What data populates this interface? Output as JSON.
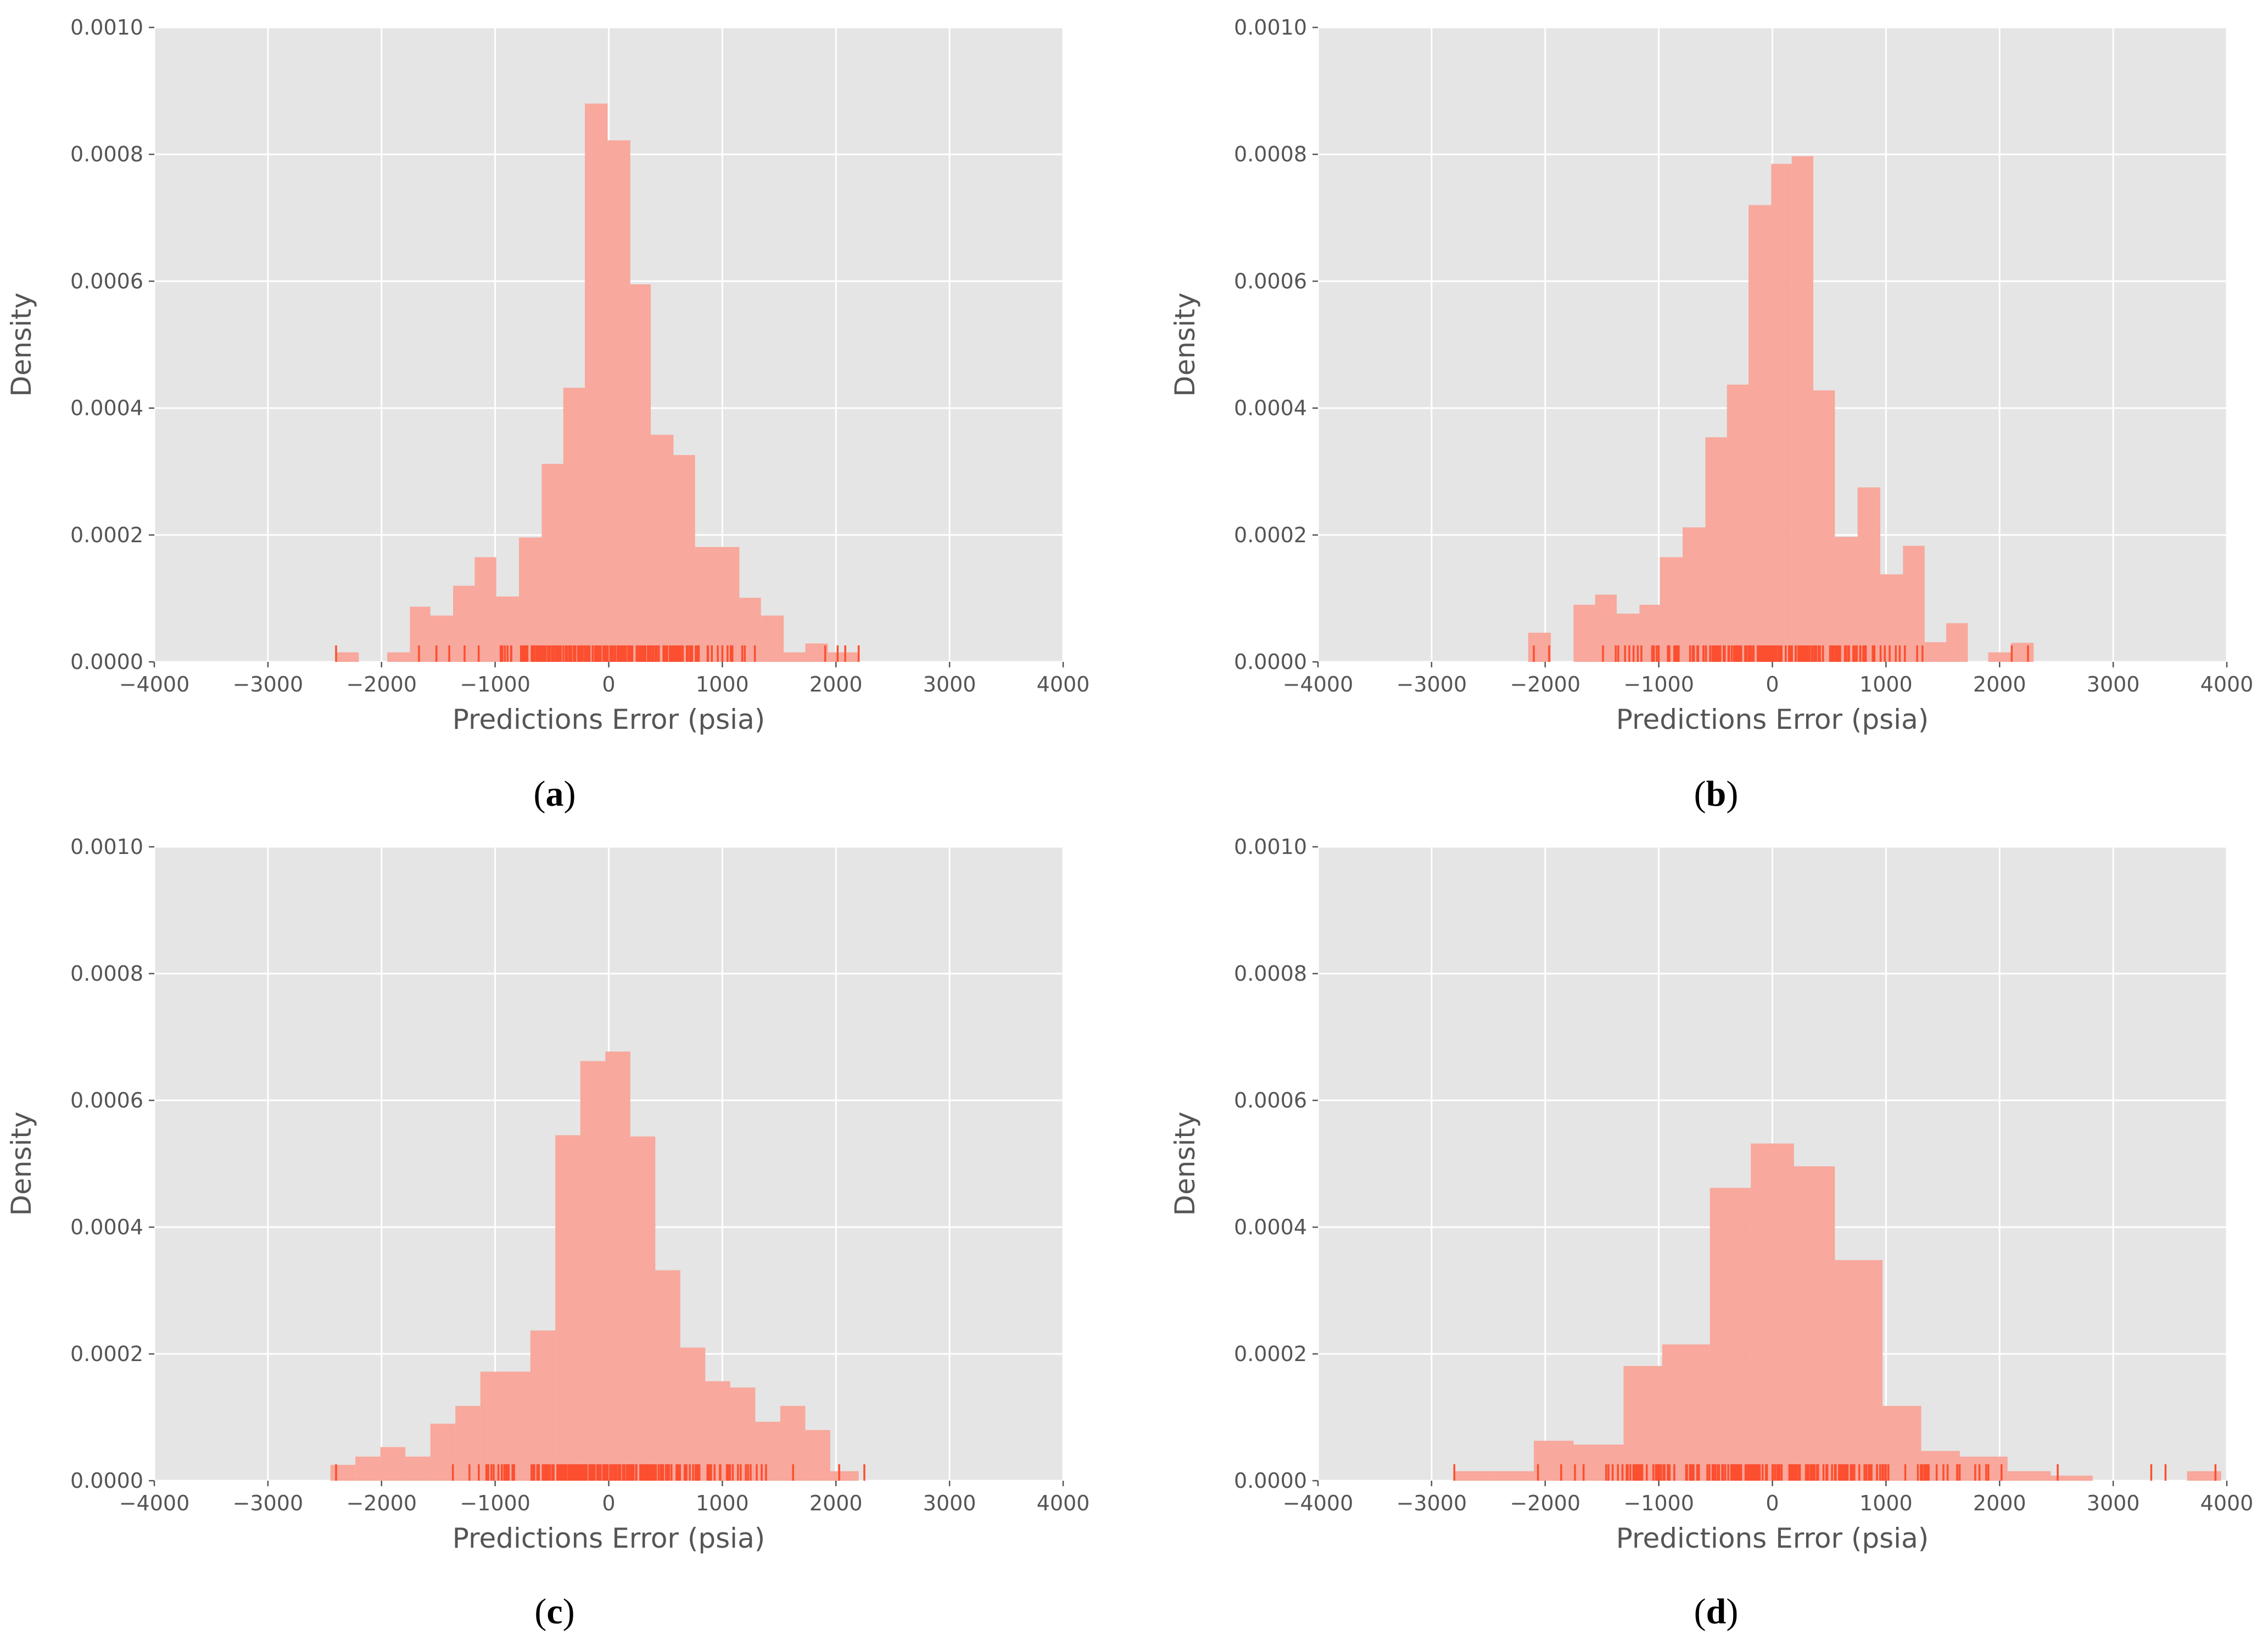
{
  "colors": {
    "plot_background": "#e5e5e5",
    "grid": "#ffffff",
    "bar_fill": "#f8a89c",
    "rug": "#fc4f30",
    "tick_text": "#555555"
  },
  "chart_data": [
    {
      "type": "bar",
      "panel_label": "a",
      "caption_open": "(",
      "caption_close": ")",
      "xlabel": "Predictions Error (psia)",
      "ylabel": "Density",
      "xlim": [
        -4000,
        4000
      ],
      "ylim": [
        0,
        0.001
      ],
      "grid": true,
      "xticks": [
        -4000,
        -3000,
        -2000,
        -1000,
        0,
        1000,
        2000,
        3000,
        4000
      ],
      "xtick_labels": [
        "−4000",
        "−3000",
        "−2000",
        "−1000",
        "0",
        "1000",
        "2000",
        "3000",
        "4000"
      ],
      "yticks": [
        0,
        0.0002,
        0.0004,
        0.0006,
        0.0008,
        0.001
      ],
      "ytick_labels": [
        "0.0000",
        "0.0002",
        "0.0004",
        "0.0006",
        "0.0008",
        "0.0010"
      ],
      "bins": [
        {
          "x0": -2400,
          "x1": -2200,
          "y": 1.5e-05
        },
        {
          "x0": -1950,
          "x1": -1750,
          "y": 1.5e-05
        },
        {
          "x0": -1750,
          "x1": -1570,
          "y": 8.7e-05
        },
        {
          "x0": -1570,
          "x1": -1370,
          "y": 7.3e-05
        },
        {
          "x0": -1370,
          "x1": -1180,
          "y": 0.00012
        },
        {
          "x0": -1180,
          "x1": -990,
          "y": 0.000165
        },
        {
          "x0": -990,
          "x1": -790,
          "y": 0.000103
        },
        {
          "x0": -790,
          "x1": -590,
          "y": 0.000196
        },
        {
          "x0": -590,
          "x1": -400,
          "y": 0.000312
        },
        {
          "x0": -400,
          "x1": -210,
          "y": 0.000432
        },
        {
          "x0": -210,
          "x1": -10,
          "y": 0.00088
        },
        {
          "x0": -10,
          "x1": 190,
          "y": 0.000822
        },
        {
          "x0": 190,
          "x1": 370,
          "y": 0.000595
        },
        {
          "x0": 370,
          "x1": 570,
          "y": 0.000358
        },
        {
          "x0": 570,
          "x1": 760,
          "y": 0.000326
        },
        {
          "x0": 760,
          "x1": 1150,
          "y": 0.000181
        },
        {
          "x0": 1150,
          "x1": 1340,
          "y": 0.000101
        },
        {
          "x0": 1340,
          "x1": 1540,
          "y": 7.3e-05
        },
        {
          "x0": 1540,
          "x1": 1730,
          "y": 1.5e-05
        },
        {
          "x0": 1730,
          "x1": 1930,
          "y": 2.9e-05
        },
        {
          "x0": 1930,
          "x1": 2200,
          "y": 1.5e-05
        }
      ],
      "rug_range": [
        -2400,
        2200
      ]
    },
    {
      "type": "bar",
      "panel_label": "b",
      "caption_open": "(",
      "caption_close": ")",
      "xlabel": "Predictions Error (psia)",
      "ylabel": "Density",
      "xlim": [
        -4000,
        4000
      ],
      "ylim": [
        0,
        0.001
      ],
      "grid": true,
      "xticks": [
        -4000,
        -3000,
        -2000,
        -1000,
        0,
        1000,
        2000,
        3000,
        4000
      ],
      "xtick_labels": [
        "−4000",
        "−3000",
        "−2000",
        "−1000",
        "0",
        "1000",
        "2000",
        "3000",
        "4000"
      ],
      "yticks": [
        0,
        0.0002,
        0.0004,
        0.0006,
        0.0008,
        0.001
      ],
      "ytick_labels": [
        "0.0000",
        "0.0002",
        "0.0004",
        "0.0006",
        "0.0008",
        "0.0010"
      ],
      "bins": [
        {
          "x0": -2150,
          "x1": -1950,
          "y": 4.6e-05
        },
        {
          "x0": -1750,
          "x1": -1560,
          "y": 9e-05
        },
        {
          "x0": -1560,
          "x1": -1370,
          "y": 0.000106
        },
        {
          "x0": -1370,
          "x1": -1170,
          "y": 7.6e-05
        },
        {
          "x0": -1170,
          "x1": -990,
          "y": 9e-05
        },
        {
          "x0": -990,
          "x1": -790,
          "y": 0.000165
        },
        {
          "x0": -790,
          "x1": -590,
          "y": 0.000212
        },
        {
          "x0": -590,
          "x1": -400,
          "y": 0.000354
        },
        {
          "x0": -400,
          "x1": -210,
          "y": 0.000437
        },
        {
          "x0": -210,
          "x1": -10,
          "y": 0.00072
        },
        {
          "x0": -10,
          "x1": 170,
          "y": 0.000785
        },
        {
          "x0": 170,
          "x1": 360,
          "y": 0.000797
        },
        {
          "x0": 360,
          "x1": 550,
          "y": 0.000428
        },
        {
          "x0": 550,
          "x1": 750,
          "y": 0.000197
        },
        {
          "x0": 750,
          "x1": 950,
          "y": 0.000275
        },
        {
          "x0": 950,
          "x1": 1150,
          "y": 0.000138
        },
        {
          "x0": 1150,
          "x1": 1340,
          "y": 0.000183
        },
        {
          "x0": 1340,
          "x1": 1530,
          "y": 3.1e-05
        },
        {
          "x0": 1530,
          "x1": 1720,
          "y": 6.1e-05
        },
        {
          "x0": 1900,
          "x1": 2100,
          "y": 1.5e-05
        },
        {
          "x0": 2100,
          "x1": 2300,
          "y": 3e-05
        }
      ],
      "rug_range": [
        -2100,
        2250
      ]
    },
    {
      "type": "bar",
      "panel_label": "c",
      "caption_open": "(",
      "caption_close": ")",
      "xlabel": "Predictions Error (psia)",
      "ylabel": "Density",
      "xlim": [
        -4000,
        4000
      ],
      "ylim": [
        0,
        0.001
      ],
      "grid": true,
      "xticks": [
        -4000,
        -3000,
        -2000,
        -1000,
        0,
        1000,
        2000,
        3000,
        4000
      ],
      "xtick_labels": [
        "−4000",
        "−3000",
        "−2000",
        "−1000",
        "0",
        "1000",
        "2000",
        "3000",
        "4000"
      ],
      "yticks": [
        0,
        0.0002,
        0.0004,
        0.0006,
        0.0008,
        0.001
      ],
      "ytick_labels": [
        "0.0000",
        "0.0002",
        "0.0004",
        "0.0006",
        "0.0008",
        "0.0010"
      ],
      "bins": [
        {
          "x0": -2450,
          "x1": -2230,
          "y": 2.5e-05
        },
        {
          "x0": -2230,
          "x1": -2010,
          "y": 3.8e-05
        },
        {
          "x0": -2010,
          "x1": -1790,
          "y": 5.3e-05
        },
        {
          "x0": -1790,
          "x1": -1570,
          "y": 3.8e-05
        },
        {
          "x0": -1570,
          "x1": -1350,
          "y": 9e-05
        },
        {
          "x0": -1350,
          "x1": -1130,
          "y": 0.000118
        },
        {
          "x0": -1130,
          "x1": -690,
          "y": 0.000172
        },
        {
          "x0": -690,
          "x1": -470,
          "y": 0.000237
        },
        {
          "x0": -470,
          "x1": -250,
          "y": 0.000545
        },
        {
          "x0": -250,
          "x1": -30,
          "y": 0.000662
        },
        {
          "x0": -30,
          "x1": 190,
          "y": 0.000677
        },
        {
          "x0": 190,
          "x1": 410,
          "y": 0.000543
        },
        {
          "x0": 410,
          "x1": 630,
          "y": 0.000332
        },
        {
          "x0": 630,
          "x1": 850,
          "y": 0.00021
        },
        {
          "x0": 850,
          "x1": 1070,
          "y": 0.000157
        },
        {
          "x0": 1070,
          "x1": 1290,
          "y": 0.000147
        },
        {
          "x0": 1290,
          "x1": 1510,
          "y": 9.3e-05
        },
        {
          "x0": 1510,
          "x1": 1730,
          "y": 0.000118
        },
        {
          "x0": 1730,
          "x1": 1950,
          "y": 8e-05
        },
        {
          "x0": 1950,
          "x1": 2200,
          "y": 1.5e-05
        }
      ],
      "rug_range": [
        -2400,
        2250
      ]
    },
    {
      "type": "bar",
      "panel_label": "d",
      "caption_open": "(",
      "caption_close": ")",
      "xlabel": "Predictions Error (psia)",
      "ylabel": "Density",
      "xlim": [
        -4000,
        4000
      ],
      "ylim": [
        0,
        0.001
      ],
      "grid": true,
      "xticks": [
        -4000,
        -3000,
        -2000,
        -1000,
        0,
        1000,
        2000,
        3000,
        4000
      ],
      "xtick_labels": [
        "−4000",
        "−3000",
        "−2000",
        "−1000",
        "0",
        "1000",
        "2000",
        "3000",
        "4000"
      ],
      "yticks": [
        0,
        0.0002,
        0.0004,
        0.0006,
        0.0008,
        0.001
      ],
      "ytick_labels": [
        "0.0000",
        "0.0002",
        "0.0004",
        "0.0006",
        "0.0008",
        "0.0010"
      ],
      "bins": [
        {
          "x0": -2800,
          "x1": -2450,
          "y": 1.5e-05
        },
        {
          "x0": -2450,
          "x1": -2100,
          "y": 1.5e-05
        },
        {
          "x0": -2100,
          "x1": -1750,
          "y": 6.3e-05
        },
        {
          "x0": -1750,
          "x1": -1310,
          "y": 5.7e-05
        },
        {
          "x0": -1310,
          "x1": -970,
          "y": 0.000181
        },
        {
          "x0": -970,
          "x1": -550,
          "y": 0.000215
        },
        {
          "x0": -550,
          "x1": -190,
          "y": 0.000462
        },
        {
          "x0": -190,
          "x1": 190,
          "y": 0.000532
        },
        {
          "x0": 190,
          "x1": 550,
          "y": 0.000496
        },
        {
          "x0": 550,
          "x1": 970,
          "y": 0.000348
        },
        {
          "x0": 970,
          "x1": 1310,
          "y": 0.000118
        },
        {
          "x0": 1310,
          "x1": 1650,
          "y": 4.7e-05
        },
        {
          "x0": 1650,
          "x1": 2070,
          "y": 3.8e-05
        },
        {
          "x0": 2070,
          "x1": 2450,
          "y": 1.5e-05
        },
        {
          "x0": 2450,
          "x1": 2820,
          "y": 8e-06
        },
        {
          "x0": 3650,
          "x1": 3950,
          "y": 1.5e-05
        }
      ],
      "rug_range": [
        -2800,
        3900
      ]
    }
  ]
}
